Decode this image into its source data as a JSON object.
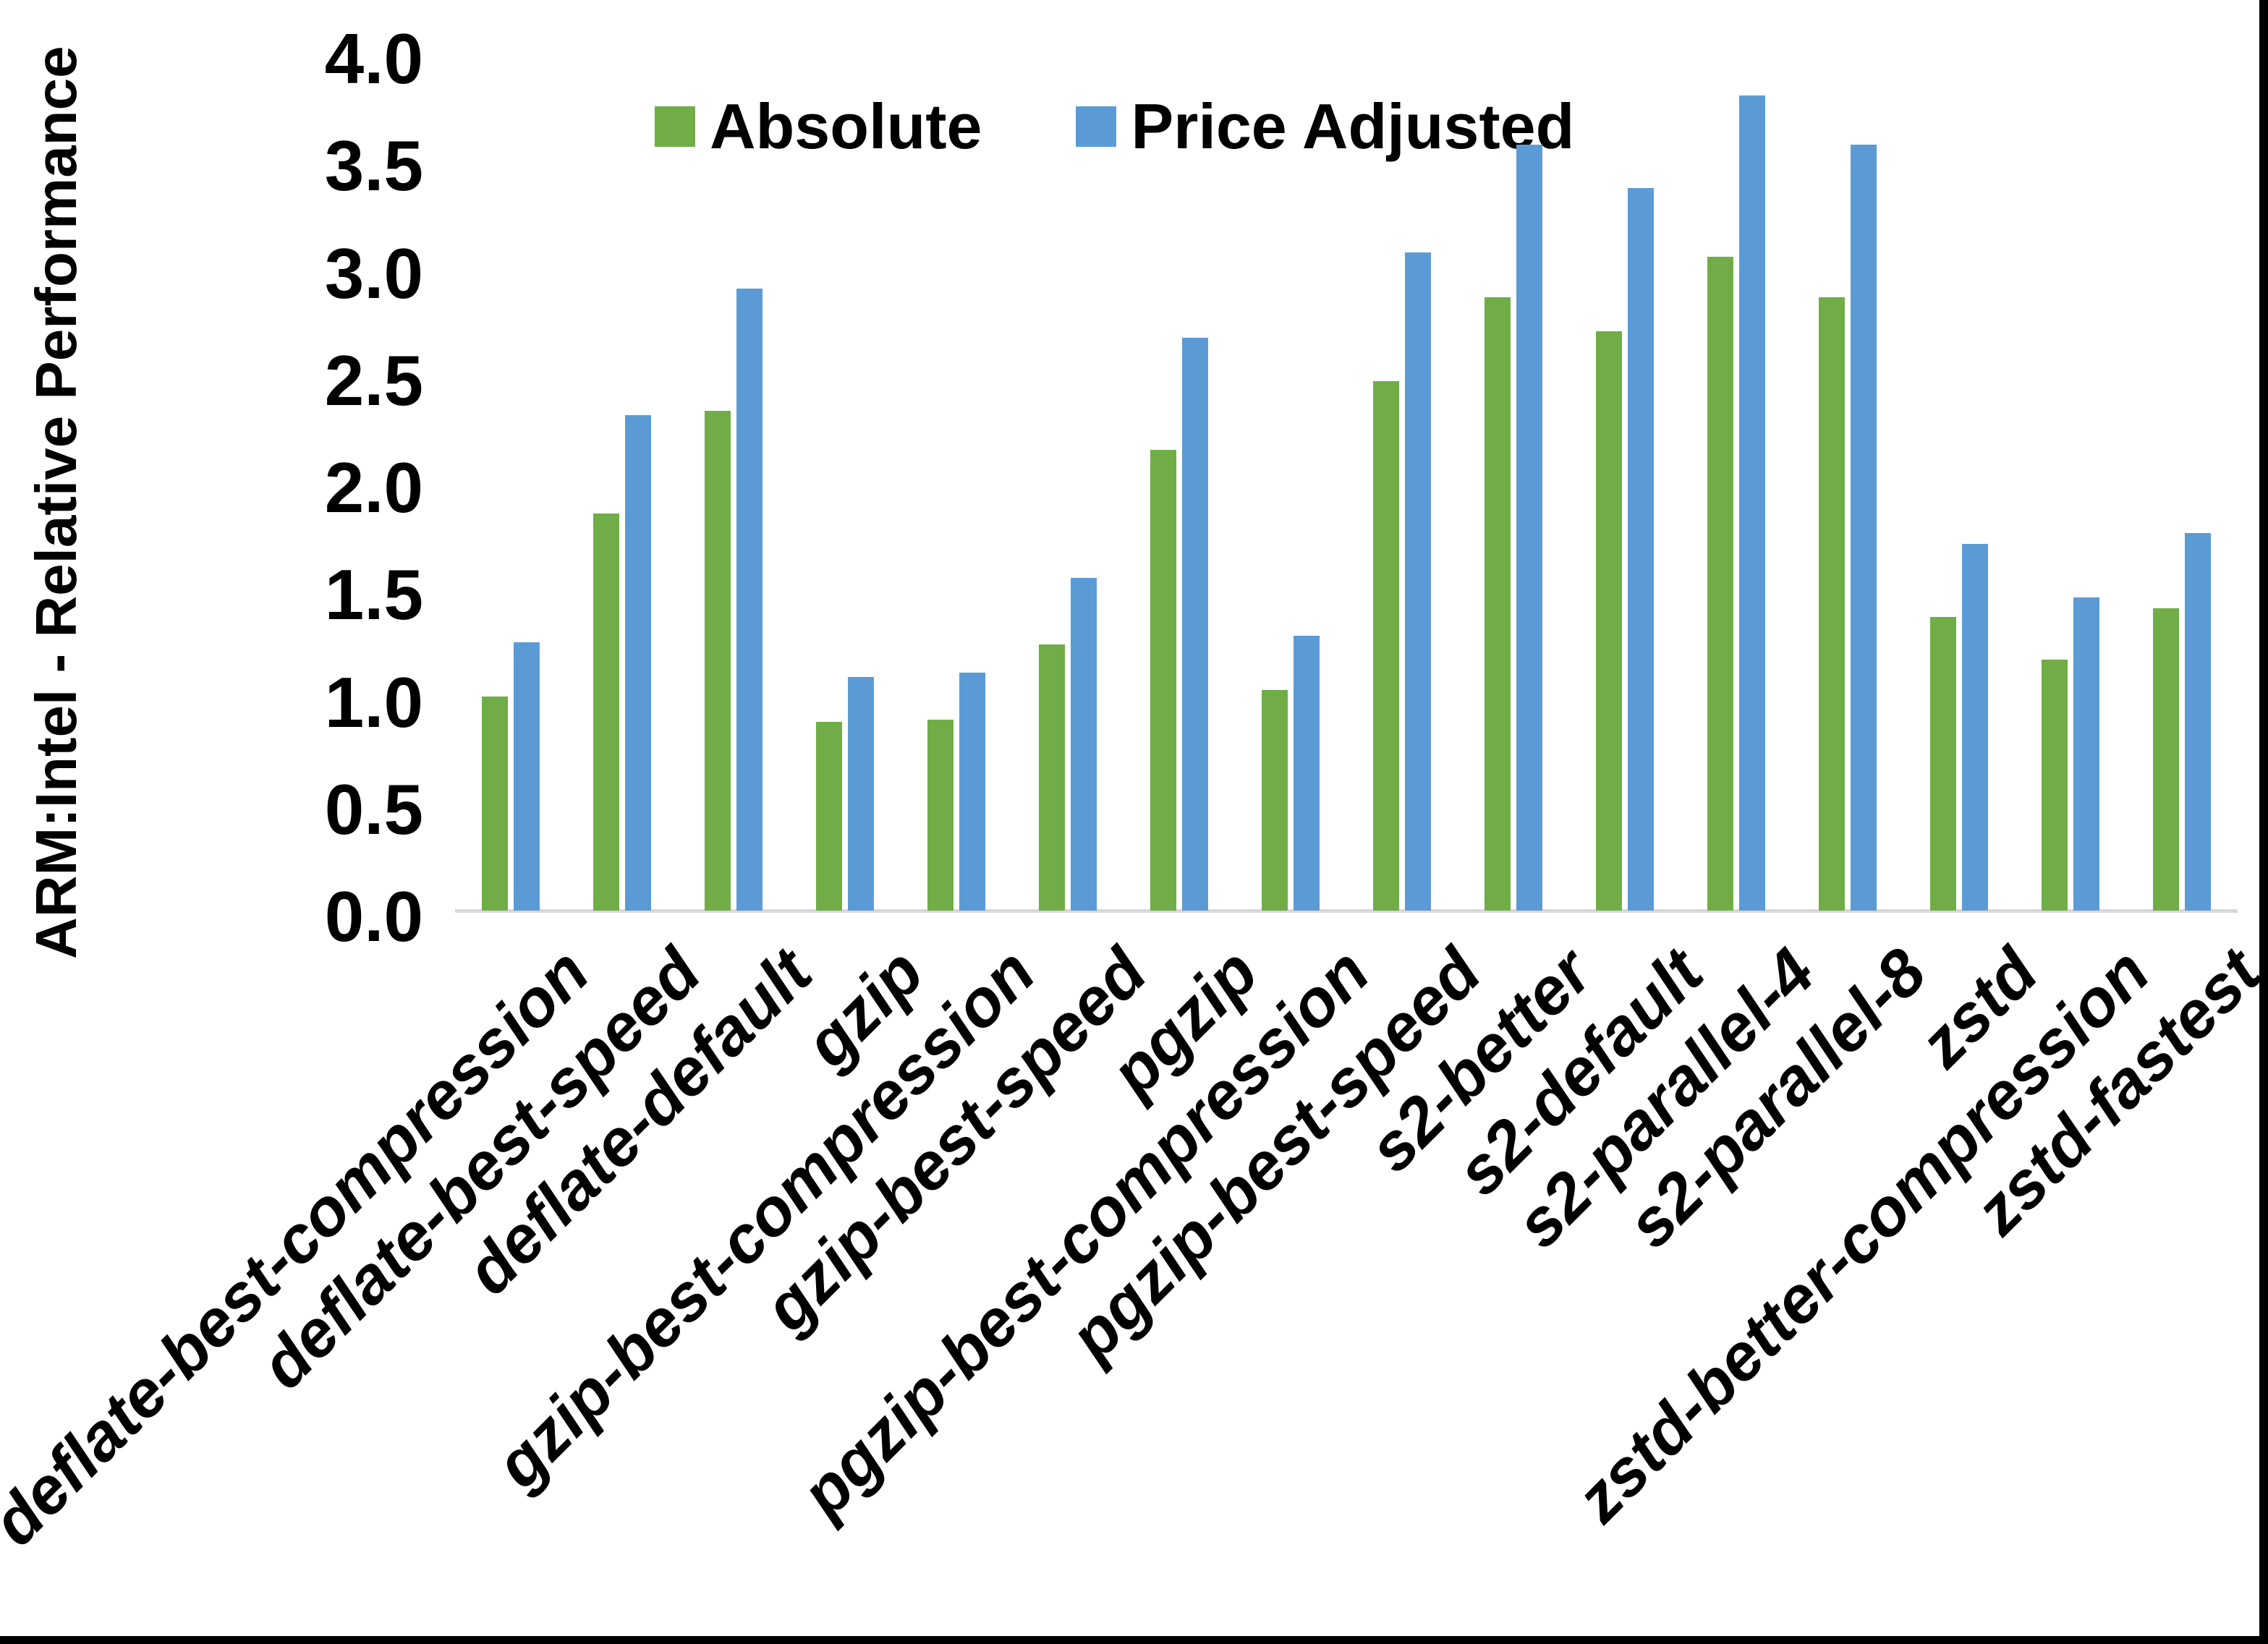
{
  "chart_data": {
    "type": "bar",
    "title": "",
    "xlabel": "",
    "ylabel": "ARM:Intel - Relative Performance",
    "ylim": [
      0.0,
      4.0
    ],
    "ytick_step": 0.5,
    "ytick_labels": [
      "0.0",
      "0.5",
      "1.0",
      "1.5",
      "2.0",
      "2.5",
      "3.0",
      "3.5",
      "4.0"
    ],
    "grid": false,
    "legend_position": "top-center",
    "categories": [
      "deflate-best-compression",
      "deflate-best-speed",
      "deflate-default",
      "gzip",
      "gzip-best-compression",
      "gzip-best-speed",
      "pgzip",
      "pgzip-best-compression",
      "pgzip-best-speed",
      "s2-better",
      "s2-default",
      "s2-parallel-4",
      "s2-parallel-8",
      "zstd",
      "zstd-better-compression",
      "zstd-fastest"
    ],
    "series": [
      {
        "name": "Absolute",
        "color": "#70AD47",
        "values": [
          1.0,
          1.85,
          2.33,
          0.88,
          0.89,
          1.24,
          2.15,
          1.03,
          2.47,
          2.86,
          2.7,
          3.05,
          2.86,
          1.37,
          1.17,
          1.41
        ]
      },
      {
        "name": "Price Adjusted",
        "color": "#5B9BD5",
        "values": [
          1.25,
          2.31,
          2.9,
          1.09,
          1.11,
          1.55,
          2.67,
          1.28,
          3.07,
          3.57,
          3.37,
          3.8,
          3.57,
          1.71,
          1.46,
          1.76
        ]
      }
    ]
  },
  "colors": {
    "axis_line": "#d9d9d9",
    "frame_border": "#000000",
    "background": "#ffffff"
  }
}
